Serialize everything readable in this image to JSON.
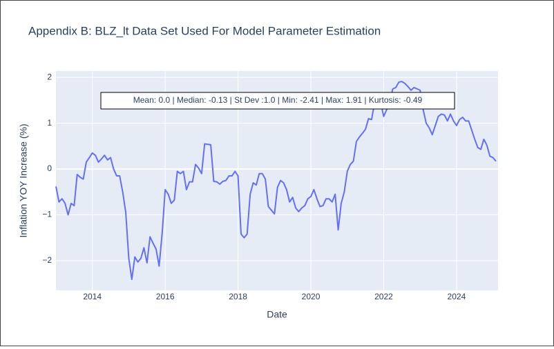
{
  "chart_data": {
    "type": "line",
    "title": "Appendix B: BLZ_lt Data Set Used For Model Parameter Estimation",
    "x_label": "Date",
    "y_label": "Inflation YOY Increase (%)",
    "annotation": "Mean: 0.0 | Median: -0.13 | St Dev :1.0 | Min: -2.41 | Max: 1.91 | Kurtosis: -0.49",
    "grid": true,
    "xlim": [
      2013,
      2025.14
    ],
    "ylim": [
      -2.65,
      2.14
    ],
    "xticks": [
      2014,
      2016,
      2018,
      2020,
      2022,
      2024
    ],
    "yticks": [
      2,
      1,
      0,
      {
        "value": -1,
        "label": "−1"
      },
      {
        "value": -2,
        "label": "−2"
      }
    ],
    "x": [
      2013,
      2013.083,
      2013.167,
      2013.25,
      2013.333,
      2013.417,
      2013.5,
      2013.583,
      2013.667,
      2013.75,
      2013.833,
      2013.917,
      2014,
      2014.083,
      2014.167,
      2014.25,
      2014.333,
      2014.417,
      2014.5,
      2014.583,
      2014.667,
      2014.75,
      2014.833,
      2014.917,
      2015,
      2015.083,
      2015.167,
      2015.25,
      2015.333,
      2015.417,
      2015.5,
      2015.583,
      2015.667,
      2015.75,
      2015.833,
      2015.917,
      2016,
      2016.083,
      2016.167,
      2016.25,
      2016.333,
      2016.417,
      2016.5,
      2016.583,
      2016.667,
      2016.75,
      2016.833,
      2016.917,
      2017,
      2017.083,
      2017.167,
      2017.25,
      2017.333,
      2017.417,
      2017.5,
      2017.583,
      2017.667,
      2017.75,
      2017.833,
      2017.917,
      2018,
      2018.083,
      2018.167,
      2018.25,
      2018.333,
      2018.417,
      2018.5,
      2018.583,
      2018.667,
      2018.75,
      2018.833,
      2018.917,
      2019,
      2019.083,
      2019.167,
      2019.25,
      2019.333,
      2019.417,
      2019.5,
      2019.583,
      2019.667,
      2019.75,
      2019.833,
      2019.917,
      2020,
      2020.083,
      2020.167,
      2020.25,
      2020.333,
      2020.417,
      2020.5,
      2020.583,
      2020.667,
      2020.75,
      2020.833,
      2020.917,
      2021,
      2021.083,
      2021.167,
      2021.25,
      2021.333,
      2021.417,
      2021.5,
      2021.583,
      2021.667,
      2021.75,
      2021.833,
      2021.917,
      2022,
      2022.083,
      2022.167,
      2022.25,
      2022.333,
      2022.417,
      2022.5,
      2022.583,
      2022.667,
      2022.75,
      2022.833,
      2022.917,
      2023,
      2023.083,
      2023.167,
      2023.25,
      2023.333,
      2023.417,
      2023.5,
      2023.583,
      2023.667,
      2023.75,
      2023.833,
      2023.917,
      2024,
      2024.083,
      2024.167,
      2024.25,
      2024.333,
      2024.417,
      2024.5,
      2024.583,
      2024.667,
      2024.75,
      2024.833,
      2024.917,
      2025,
      2025.083
    ],
    "series": [
      {
        "name": "BLZ_lt",
        "color": "#636efa",
        "values": [
          -0.38,
          -0.72,
          -0.65,
          -0.75,
          -1.0,
          -0.75,
          -0.8,
          -0.12,
          -0.18,
          -0.22,
          0.15,
          0.25,
          0.35,
          0.3,
          0.15,
          0.22,
          0.3,
          0.2,
          0.25,
          0.0,
          -0.15,
          -0.15,
          -0.5,
          -0.95,
          -1.95,
          -2.41,
          -1.92,
          -2.03,
          -1.95,
          -1.72,
          -2.05,
          -1.48,
          -1.62,
          -1.75,
          -2.12,
          -1.4,
          -0.45,
          -0.55,
          -0.75,
          -0.68,
          -0.05,
          -0.1,
          -0.05,
          -0.45,
          -0.28,
          -0.28,
          0.1,
          0.02,
          -0.1,
          0.55,
          0.54,
          0.53,
          -0.27,
          -0.28,
          -0.33,
          -0.27,
          -0.25,
          -0.15,
          -0.15,
          -0.05,
          -0.15,
          -1.42,
          -1.5,
          -1.42,
          -0.55,
          -0.3,
          -0.35,
          -0.1,
          -0.1,
          -0.22,
          -0.82,
          -0.9,
          -0.98,
          -0.4,
          -0.25,
          -0.3,
          -0.45,
          -0.72,
          -0.62,
          -0.85,
          -0.93,
          -0.85,
          -0.8,
          -0.65,
          -0.6,
          -0.45,
          -0.65,
          -0.82,
          -0.8,
          -0.65,
          -0.65,
          -0.72,
          -0.55,
          -1.33,
          -0.75,
          -0.5,
          -0.05,
          0.1,
          0.17,
          0.6,
          0.7,
          0.78,
          0.87,
          1.1,
          1.08,
          1.45,
          1.5,
          1.45,
          1.15,
          1.3,
          1.5,
          1.75,
          1.78,
          1.9,
          1.91,
          1.87,
          1.8,
          1.72,
          1.78,
          1.75,
          1.72,
          1.3,
          1.0,
          0.9,
          0.75,
          0.95,
          1.15,
          1.2,
          1.18,
          1.05,
          1.2,
          1.05,
          0.95,
          1.08,
          1.13,
          1.05,
          1.05,
          0.85,
          0.65,
          0.47,
          0.43,
          0.65,
          0.52,
          0.28,
          0.25,
          0.17
        ]
      }
    ]
  }
}
